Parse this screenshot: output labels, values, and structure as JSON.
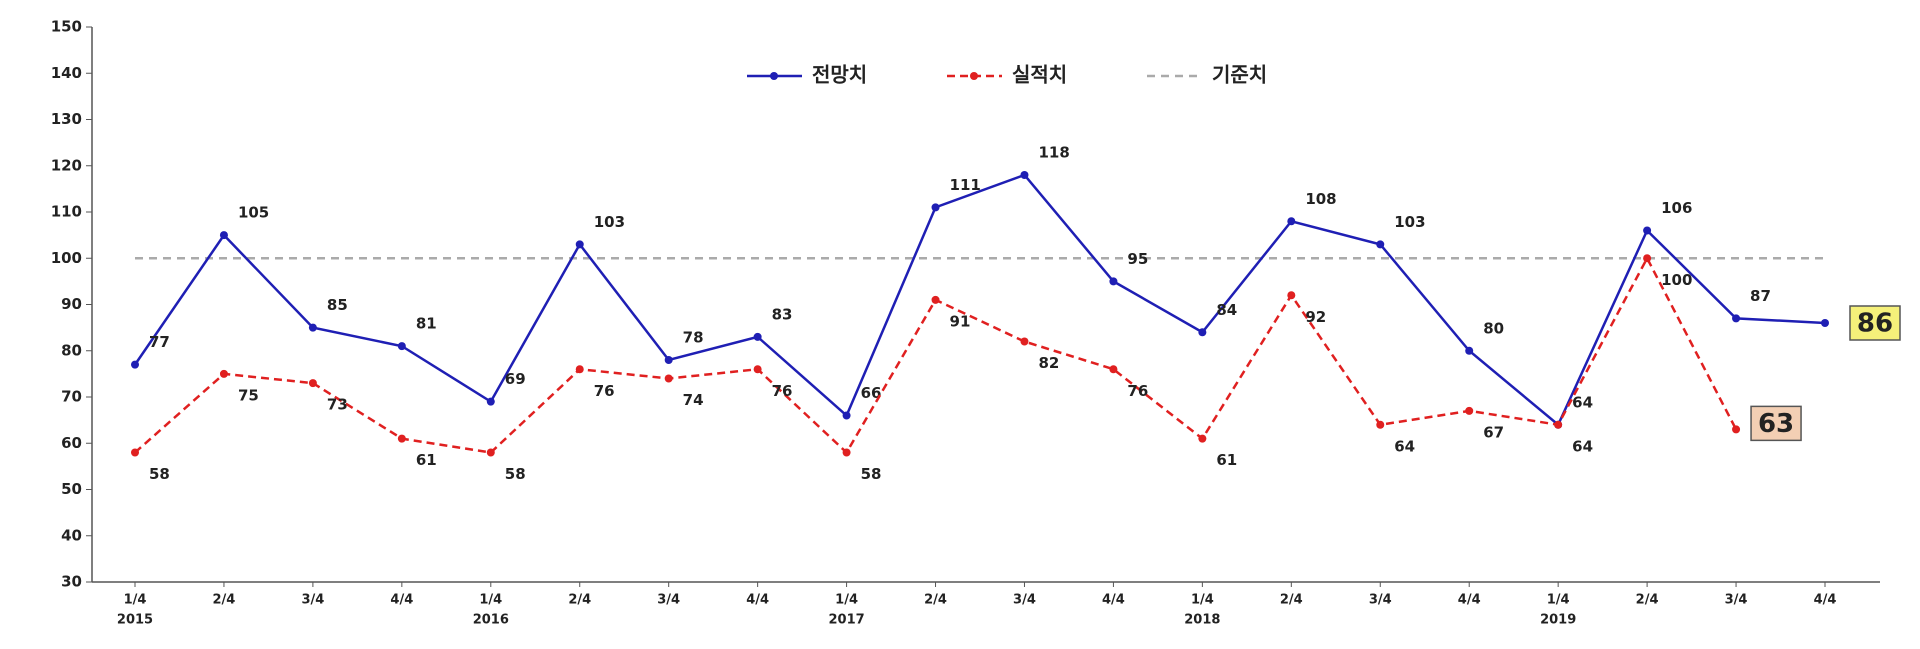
{
  "chart_data": {
    "type": "line",
    "categories": [
      "1/4",
      "2/4",
      "3/4",
      "4/4",
      "1/4",
      "2/4",
      "3/4",
      "4/4",
      "1/4",
      "2/4",
      "3/4",
      "4/4",
      "1/4",
      "2/4",
      "3/4",
      "4/4",
      "1/4",
      "2/4",
      "3/4",
      "4/4"
    ],
    "category_years": [
      "2015",
      null,
      null,
      null,
      "2016",
      null,
      null,
      null,
      "2017",
      null,
      null,
      null,
      "2018",
      null,
      null,
      null,
      "2019",
      null,
      null,
      null
    ],
    "series": [
      {
        "name": "전망치",
        "color": "#1f1fb4",
        "dash": false,
        "label_box_color": "#f5f07a",
        "values": [
          77,
          105,
          85,
          81,
          69,
          103,
          78,
          83,
          66,
          111,
          118,
          95,
          84,
          108,
          103,
          80,
          64,
          106,
          87,
          86
        ]
      },
      {
        "name": "실적치",
        "color": "#e02020",
        "dash": true,
        "label_box_color": "#f3cfb4",
        "values": [
          58,
          75,
          73,
          61,
          58,
          76,
          74,
          76,
          58,
          91,
          82,
          76,
          61,
          92,
          64,
          67,
          64,
          100,
          63,
          null
        ]
      }
    ],
    "reference_line": {
      "name": "기준치",
      "value": 100,
      "color": "#aaaaaa"
    },
    "ylim": [
      30,
      150
    ],
    "yticks": [
      30,
      40,
      50,
      60,
      70,
      80,
      90,
      100,
      110,
      120,
      130,
      140,
      150
    ]
  }
}
